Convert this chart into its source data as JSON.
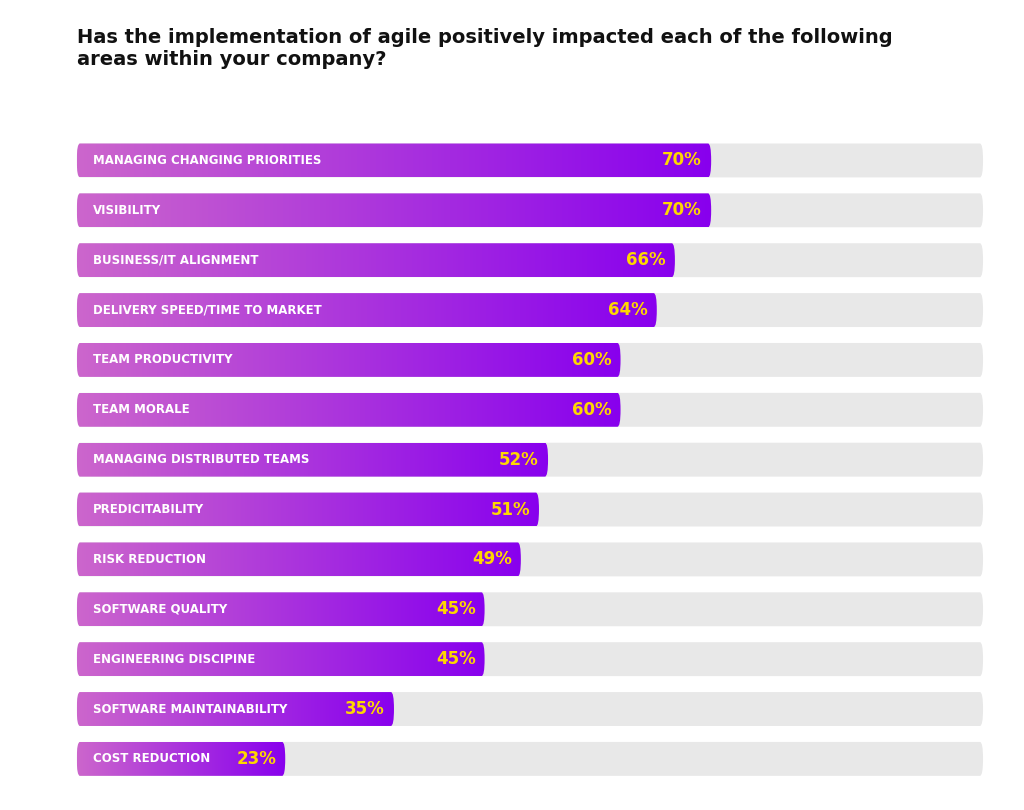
{
  "title": "Has the implementation of agile positively impacted each of the following\nareas within your company?",
  "categories": [
    "MANAGING CHANGING PRIORITIES",
    "VISIBILITY",
    "BUSINESS/IT ALIGNMENT",
    "DELIVERY SPEED/TIME TO MARKET",
    "TEAM PRODUCTIVITY",
    "TEAM MORALE",
    "MANAGING DISTRIBUTED TEAMS",
    "PREDICITABILITY",
    "RISK REDUCTION",
    "SOFTWARE QUALITY",
    "ENGINEERING DISCIPINE",
    "SOFTWARE MAINTAINABILITY",
    "COST REDUCTION"
  ],
  "values": [
    70,
    70,
    66,
    64,
    60,
    60,
    52,
    51,
    49,
    45,
    45,
    35,
    23
  ],
  "bar_color_left": "#cc66cc",
  "bar_color_right": "#8800ee",
  "bg_color_bar": "#e8e8e8",
  "label_color": "#ffffff",
  "value_color": "#FFD700",
  "title_color": "#111111",
  "background_color": "#ffffff",
  "max_value": 100,
  "bar_height": 0.68,
  "title_fontsize": 14,
  "label_fontsize": 8.5,
  "value_fontsize": 12
}
